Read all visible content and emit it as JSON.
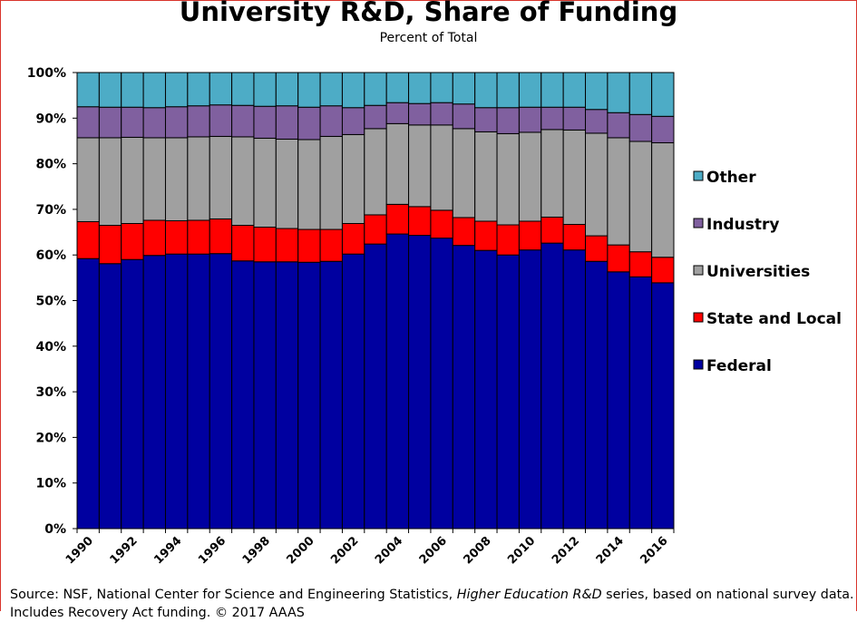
{
  "chart_data": {
    "type": "bar",
    "stacked": true,
    "title": "University R&D, Share of Funding",
    "subtitle": "Percent of Total",
    "ylim": [
      0,
      100
    ],
    "y_tick_labels": [
      "0%",
      "10%",
      "20%",
      "30%",
      "40%",
      "50%",
      "60%",
      "70%",
      "80%",
      "90%",
      "100%"
    ],
    "categories": [
      1990,
      1991,
      1992,
      1993,
      1994,
      1995,
      1996,
      1997,
      1998,
      1999,
      2000,
      2001,
      2002,
      2003,
      2004,
      2005,
      2006,
      2007,
      2008,
      2009,
      2010,
      2011,
      2012,
      2013,
      2014,
      2015,
      2016
    ],
    "x_tick_labels": [
      "1990",
      "1992",
      "1994",
      "1996",
      "1998",
      "2000",
      "2002",
      "2004",
      "2006",
      "2008",
      "2010",
      "2012",
      "2014",
      "2016"
    ],
    "legend_position": "right",
    "series": [
      {
        "name": "Federal",
        "color": "#0000a0",
        "values": [
          59.2,
          58.1,
          59.0,
          59.9,
          60.2,
          60.2,
          60.3,
          58.7,
          58.5,
          58.5,
          58.4,
          58.6,
          60.2,
          62.4,
          64.6,
          64.3,
          63.7,
          62.1,
          61.0,
          60.0,
          61.1,
          62.6,
          61.1,
          58.6,
          56.3,
          55.2,
          53.9
        ]
      },
      {
        "name": "State and Local",
        "color": "#ff0000",
        "values": [
          8.1,
          8.4,
          7.9,
          7.7,
          7.3,
          7.4,
          7.6,
          7.8,
          7.6,
          7.3,
          7.2,
          7.0,
          6.7,
          6.4,
          6.5,
          6.3,
          6.1,
          6.1,
          6.4,
          6.6,
          6.3,
          5.7,
          5.6,
          5.6,
          5.9,
          5.5,
          5.6
        ]
      },
      {
        "name": "Universities",
        "color": "#a0a0a0",
        "values": [
          18.4,
          19.2,
          18.9,
          18.1,
          18.2,
          18.3,
          18.1,
          19.4,
          19.5,
          19.6,
          19.7,
          20.4,
          19.5,
          18.9,
          17.7,
          17.9,
          18.7,
          19.5,
          19.6,
          20.0,
          19.5,
          19.2,
          20.7,
          22.5,
          23.5,
          24.2,
          25.1
        ]
      },
      {
        "name": "Industry",
        "color": "#80609f",
        "values": [
          6.8,
          6.7,
          6.6,
          6.6,
          6.8,
          6.8,
          6.9,
          6.9,
          7.0,
          7.3,
          7.1,
          6.7,
          5.9,
          5.1,
          4.6,
          4.7,
          4.9,
          5.4,
          5.3,
          5.7,
          5.5,
          4.9,
          5.0,
          5.2,
          5.5,
          5.9,
          5.8
        ]
      },
      {
        "name": "Other",
        "color": "#4dacc6",
        "values": [
          7.5,
          7.6,
          7.6,
          7.7,
          7.5,
          7.3,
          7.1,
          7.2,
          7.4,
          7.3,
          7.6,
          7.3,
          7.7,
          7.2,
          6.6,
          6.8,
          6.6,
          6.9,
          7.7,
          7.7,
          7.6,
          7.6,
          7.6,
          8.1,
          8.8,
          9.2,
          9.6
        ]
      }
    ],
    "legend_order": [
      "Other",
      "Industry",
      "Universities",
      "State and Local",
      "Federal"
    ]
  },
  "source": {
    "prefix": "Source: NSF, National Center for Science and Engineering Statistics, ",
    "italic": "Higher Education R&D",
    "suffix": " series, based on national survey data.",
    "line2": "Includes Recovery Act funding. © 2017 AAAS"
  }
}
